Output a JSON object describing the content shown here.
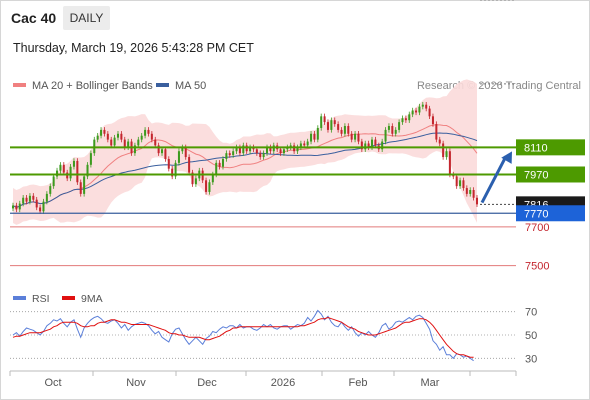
{
  "header": {
    "instrument": "Cac 40",
    "period": "DAILY",
    "timestamp": "Thursday, March 19, 2026 5:43:28 PM CET"
  },
  "source": "Research © 2026 Trading Central",
  "colors": {
    "up": "#3c9a1e",
    "down": "#c4262e",
    "bollinger_fill": "#fbdada",
    "ma20": "#f08080",
    "ma50": "#3a5f9e",
    "resistance": "#4d9a00",
    "support": "#e27a7a",
    "current": "#1d63d8",
    "rsi": "#5b7fd9",
    "rsi_ma": "#e01010",
    "projection": "#2b5fae"
  },
  "chart_data": [
    {
      "type": "candlestick",
      "legend": [
        {
          "name": "MA 20 + Bollinger Bands",
          "color": "#f08080"
        },
        {
          "name": "MA 50",
          "color": "#3a5f9e"
        }
      ],
      "legend_placement": "top-left",
      "x_tick_labels": [
        "Oct",
        "Nov",
        "Dec",
        "2026",
        "Feb",
        "Mar"
      ],
      "ylim": [
        7400,
        8380
      ],
      "grid": false,
      "price_levels": [
        {
          "value": 8110,
          "label": "8110",
          "kind": "resistance"
        },
        {
          "value": 7970,
          "label": "7970",
          "kind": "resistance"
        },
        {
          "value": 7816,
          "label": "7816",
          "kind": "last"
        },
        {
          "value": 7770,
          "label": "7770",
          "kind": "current"
        },
        {
          "value": 7700,
          "label": "7700",
          "kind": "support"
        },
        {
          "value": 7500,
          "label": "7500",
          "kind": "support"
        }
      ],
      "projection": {
        "from": 7825,
        "to": 8110
      },
      "closes": [
        7810,
        7790,
        7820,
        7850,
        7830,
        7860,
        7840,
        7800,
        7780,
        7830,
        7870,
        7910,
        7960,
        7990,
        8020,
        7980,
        7950,
        8010,
        8040,
        7930,
        7870,
        7960,
        8020,
        8080,
        8150,
        8170,
        8200,
        8180,
        8150,
        8120,
        8160,
        8180,
        8150,
        8110,
        8140,
        8080,
        8120,
        8150,
        8170,
        8200,
        8180,
        8150,
        8120,
        8080,
        8100,
        8050,
        8000,
        7960,
        8030,
        8090,
        8110,
        8060,
        7980,
        7920,
        7950,
        7990,
        7940,
        7880,
        7930,
        7970,
        8030,
        8010,
        8050,
        8080,
        8070,
        8090,
        8110,
        8080,
        8120,
        8090,
        8110,
        8100,
        8080,
        8060,
        8080,
        8110,
        8090,
        8120,
        8100,
        8080,
        8100,
        8110,
        8120,
        8090,
        8110,
        8130,
        8120,
        8140,
        8180,
        8150,
        8210,
        8270,
        8240,
        8200,
        8250,
        8230,
        8200,
        8180,
        8220,
        8180,
        8150,
        8180,
        8140,
        8100,
        8130,
        8110,
        8150,
        8120,
        8100,
        8140,
        8200,
        8220,
        8180,
        8200,
        8240,
        8260,
        8250,
        8280,
        8300,
        8290,
        8320,
        8330,
        8310,
        8270,
        8230,
        8150,
        8130,
        8060,
        8090,
        7970,
        7960,
        7910,
        7940,
        7900,
        7870,
        7890,
        7850,
        7816
      ]
    },
    {
      "type": "line",
      "legend": [
        {
          "name": "RSI",
          "color": "#5b7fd9"
        },
        {
          "name": "9MA",
          "color": "#e01010"
        }
      ],
      "legend_placement": "top-left",
      "y_ticks": [
        70,
        50,
        30
      ],
      "ylim": [
        20,
        80
      ],
      "series": [
        {
          "name": "RSI",
          "values": [
            50,
            52,
            49,
            53,
            56,
            55,
            54,
            52,
            50,
            53,
            58,
            60,
            63,
            62,
            64,
            60,
            57,
            61,
            63,
            55,
            48,
            56,
            60,
            63,
            65,
            66,
            64,
            61,
            60,
            62,
            63,
            60,
            56,
            59,
            54,
            57,
            59,
            60,
            61,
            60,
            58,
            54,
            51,
            53,
            48,
            46,
            44,
            51,
            55,
            56,
            51,
            46,
            42,
            45,
            48,
            45,
            42,
            47,
            49,
            53,
            52,
            55,
            57,
            56,
            58,
            58,
            56,
            59,
            56,
            57,
            57,
            55,
            54,
            56,
            59,
            57,
            59,
            56,
            55,
            57,
            58,
            58,
            55,
            57,
            59,
            58,
            60,
            65,
            62,
            66,
            71,
            68,
            63,
            66,
            61,
            58,
            57,
            61,
            57,
            54,
            57,
            52,
            49,
            52,
            50,
            53,
            50,
            48,
            52,
            58,
            60,
            55,
            57,
            61,
            62,
            61,
            63,
            65,
            63,
            66,
            67,
            65,
            60,
            55,
            45,
            42,
            37,
            40,
            33,
            33,
            30,
            34,
            33,
            31,
            32,
            30,
            28
          ]
        },
        {
          "name": "9MA",
          "values": [
            48,
            49,
            49,
            50,
            51,
            52,
            52,
            52,
            52,
            53,
            54,
            55,
            57,
            58,
            60,
            61,
            61,
            61,
            61,
            60,
            58,
            57,
            57,
            58,
            58,
            60,
            61,
            61,
            62,
            63,
            63,
            62,
            61,
            61,
            60,
            59,
            59,
            59,
            59,
            59,
            59,
            58,
            57,
            56,
            55,
            54,
            52,
            51,
            51,
            50,
            50,
            49,
            48,
            48,
            48,
            48,
            47,
            46,
            46,
            47,
            48,
            49,
            51,
            53,
            54,
            56,
            56,
            57,
            57,
            57,
            57,
            57,
            57,
            57,
            57,
            57,
            57,
            57,
            57,
            57,
            57,
            57,
            57,
            57,
            57,
            58,
            58,
            59,
            60,
            61,
            63,
            64,
            64,
            65,
            64,
            63,
            62,
            61,
            59,
            57,
            56,
            55,
            53,
            52,
            51,
            50,
            50,
            50,
            51,
            52,
            53,
            54,
            55,
            56,
            58,
            60,
            61,
            61,
            62,
            63,
            64,
            64,
            63,
            61,
            58,
            54,
            50,
            46,
            42,
            39,
            36,
            34,
            33,
            33,
            32,
            31,
            31
          ]
        }
      ]
    }
  ]
}
